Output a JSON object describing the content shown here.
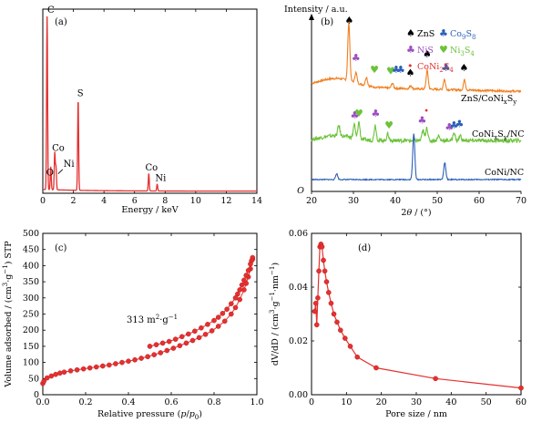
{
  "chart_data": [
    {
      "type": "bar",
      "panel_label": "(a)",
      "xlabel": "Energy / keV",
      "xlim": [
        0,
        14
      ],
      "xticks": [
        0,
        2,
        4,
        6,
        8,
        10,
        12,
        14
      ],
      "peaks": [
        {
          "x": 0.28,
          "h": 1.0
        },
        {
          "x": 0.52,
          "h": 0.13
        },
        {
          "x": 0.78,
          "h": 0.21
        },
        {
          "x": 0.86,
          "h": 0.13
        },
        {
          "x": 2.31,
          "h": 0.52
        },
        {
          "x": 6.93,
          "h": 0.1
        },
        {
          "x": 7.48,
          "h": 0.04
        }
      ],
      "peak_labels": [
        {
          "text": "C",
          "x": 0.3,
          "y": 1.02
        },
        {
          "text": "Co",
          "x": 0.6,
          "y": 0.24
        },
        {
          "text": "O",
          "x": 0.22,
          "y": 0.1
        },
        {
          "text": "Ni",
          "x": 1.35,
          "y": 0.15
        },
        {
          "text": "S",
          "x": 2.25,
          "y": 0.55
        },
        {
          "text": "Co",
          "x": 6.7,
          "y": 0.13
        },
        {
          "text": "Ni",
          "x": 7.35,
          "y": 0.07
        }
      ]
    },
    {
      "type": "line",
      "panel_label": "(b)",
      "ylabel": "Intensity / a.u.",
      "xlabel_main": "2",
      "xlabel_theta": "θ",
      "xlabel_rest": " / (°)",
      "xlim": [
        20,
        70
      ],
      "xticks": [
        20,
        30,
        40,
        50,
        60,
        70
      ],
      "origin_label": "O",
      "legend": {
        "ZnS": "ZnS",
        "Co9S8_main": "Co",
        "Co9S8_sub": "9",
        "Co9S8_s": "S",
        "Co9S8_sub2": "8",
        "NiS": "NiS",
        "Ni3S4_main": "Ni",
        "Ni3S4_sub": "3",
        "Ni3S4_s": "S",
        "Ni3S4_sub2": "4",
        "CoNi2S4_main": "CoNi",
        "CoNi2S4_sub": "2",
        "CoNi2S4_s": "S",
        "CoNi2S4_sub2": "4"
      },
      "series": [
        {
          "name": "ZnS/CoNixSy",
          "label_main": "ZnS/CoNi",
          "label_sub1": "x",
          "label_s": "S",
          "label_sub2": "y",
          "color": "#f07f20",
          "baseline": 0.62,
          "peaks": [
            [
              28.9,
              0.34
            ],
            [
              30.6,
              0.06
            ],
            [
              33.1,
              0.05
            ],
            [
              39.3,
              0.03
            ],
            [
              43.7,
              0.02
            ],
            [
              47.6,
              0.11
            ],
            [
              51.7,
              0.06
            ],
            [
              56.5,
              0.06
            ]
          ]
        },
        {
          "name": "CoNixSy/NC",
          "label_main": "CoNi",
          "label_sub1": "x",
          "label_s": "S",
          "label_sub2": "y",
          "label_rest": "/NC",
          "color": "#6cc23a",
          "baseline": 0.3,
          "peaks": [
            [
              26.5,
              0.06
            ],
            [
              30.2,
              0.08
            ],
            [
              31.3,
              0.1
            ],
            [
              35.2,
              0.09
            ],
            [
              38.2,
              0.04
            ],
            [
              46.6,
              0.06
            ],
            [
              47.5,
              0.08
            ],
            [
              50.3,
              0.03
            ],
            [
              54.0,
              0.05
            ],
            [
              55.5,
              0.03
            ]
          ]
        },
        {
          "name": "CoNi/NC",
          "color": "#2b5fb8",
          "baseline": 0.07,
          "peaks": [
            [
              26.0,
              0.035
            ],
            [
              44.4,
              0.27
            ],
            [
              51.8,
              0.1
            ]
          ]
        }
      ],
      "markers": [
        {
          "sym": "spade",
          "x": 29.0,
          "y": 0.99,
          "color": "#000000"
        },
        {
          "sym": "club",
          "x": 30.6,
          "y": 0.77,
          "color": "#9b4fc0"
        },
        {
          "sym": "heart",
          "x": 35.0,
          "y": 0.7,
          "color": "#6cc23a"
        },
        {
          "sym": "heart",
          "x": 38.9,
          "y": 0.69,
          "color": "#6cc23a"
        },
        {
          "sym": "club",
          "x": 40.2,
          "y": 0.7,
          "color": "#2b5fb8"
        },
        {
          "sym": "club",
          "x": 41.3,
          "y": 0.7,
          "color": "#2b5fb8"
        },
        {
          "sym": "spade",
          "x": 43.6,
          "y": 0.68,
          "color": "#000000"
        },
        {
          "sym": "spade",
          "x": 47.6,
          "y": 0.79,
          "color": "#000000"
        },
        {
          "sym": "club",
          "x": 52.1,
          "y": 0.71,
          "color": "#2b5fb8"
        },
        {
          "sym": "spade",
          "x": 56.4,
          "y": 0.71,
          "color": "#000000"
        },
        {
          "sym": "club",
          "x": 30.3,
          "y": 0.43,
          "color": "#9b4fc0"
        },
        {
          "sym": "heart",
          "x": 31.3,
          "y": 0.44,
          "color": "#6cc23a"
        },
        {
          "sym": "club",
          "x": 35.3,
          "y": 0.44,
          "color": "#9b4fc0"
        },
        {
          "sym": "heart",
          "x": 38.5,
          "y": 0.37,
          "color": "#6cc23a"
        },
        {
          "sym": "club",
          "x": 46.4,
          "y": 0.4,
          "color": "#9b4fc0"
        },
        {
          "sym": "dot",
          "x": 47.4,
          "y": 0.46,
          "color": "#e53030"
        },
        {
          "sym": "club",
          "x": 52.9,
          "y": 0.36,
          "color": "#9b4fc0"
        },
        {
          "sym": "club",
          "x": 54.0,
          "y": 0.37,
          "color": "#2b5fb8"
        },
        {
          "sym": "club",
          "x": 55.3,
          "y": 0.38,
          "color": "#2b5fb8"
        }
      ]
    },
    {
      "type": "scatter",
      "panel_label": "(c)",
      "xlabel_main": "Relative pressure (",
      "xlabel_p": "p",
      "xlabel_slash": "/",
      "xlabel_p0": "p",
      "xlabel_sub0": "0",
      "xlabel_close": ")",
      "ylabel_main": "Volume adsorbed / (cm",
      "ylabel_sup3": "3",
      "ylabel_mid": "·g",
      "ylabel_sup": "−1",
      "ylabel_end": ") STP",
      "annotation_main": "313 m",
      "annotation_sup2": "2",
      "annotation_mid": "·g",
      "annotation_sup": "−1",
      "xlim": [
        0,
        1.0
      ],
      "ylim": [
        0,
        500
      ],
      "xticks": [
        0.0,
        0.2,
        0.4,
        0.6,
        0.8,
        1.0
      ],
      "xtick_labels": [
        "0.0",
        "0.2",
        "0.4",
        "0.6",
        "0.8",
        "1.0"
      ],
      "yticks": [
        0,
        50,
        100,
        150,
        200,
        250,
        300,
        350,
        400,
        450,
        500
      ],
      "color": "#e53030",
      "adsorption": [
        [
          0.0,
          35
        ],
        [
          0.005,
          42
        ],
        [
          0.02,
          52
        ],
        [
          0.04,
          58
        ],
        [
          0.06,
          63
        ],
        [
          0.08,
          67
        ],
        [
          0.1,
          70
        ],
        [
          0.13,
          74
        ],
        [
          0.16,
          77
        ],
        [
          0.19,
          80
        ],
        [
          0.22,
          83
        ],
        [
          0.25,
          86
        ],
        [
          0.28,
          89
        ],
        [
          0.31,
          92
        ],
        [
          0.34,
          96
        ],
        [
          0.37,
          100
        ],
        [
          0.4,
          104
        ],
        [
          0.43,
          108
        ],
        [
          0.46,
          113
        ],
        [
          0.49,
          118
        ],
        [
          0.52,
          124
        ],
        [
          0.55,
          130
        ],
        [
          0.58,
          137
        ],
        [
          0.61,
          144
        ],
        [
          0.64,
          152
        ],
        [
          0.67,
          160
        ],
        [
          0.7,
          168
        ],
        [
          0.73,
          177
        ],
        [
          0.76,
          187
        ],
        [
          0.79,
          198
        ],
        [
          0.82,
          212
        ],
        [
          0.85,
          228
        ],
        [
          0.88,
          250
        ],
        [
          0.9,
          270
        ],
        [
          0.92,
          295
        ],
        [
          0.94,
          325
        ],
        [
          0.95,
          345
        ],
        [
          0.96,
          365
        ],
        [
          0.97,
          390
        ],
        [
          0.98,
          420
        ]
      ],
      "desorption": [
        [
          0.98,
          425
        ],
        [
          0.975,
          415
        ],
        [
          0.97,
          405
        ],
        [
          0.96,
          385
        ],
        [
          0.95,
          370
        ],
        [
          0.94,
          355
        ],
        [
          0.93,
          340
        ],
        [
          0.92,
          325
        ],
        [
          0.91,
          312
        ],
        [
          0.9,
          300
        ],
        [
          0.88,
          282
        ],
        [
          0.86,
          265
        ],
        [
          0.84,
          252
        ],
        [
          0.82,
          240
        ],
        [
          0.8,
          230
        ],
        [
          0.77,
          218
        ],
        [
          0.74,
          207
        ],
        [
          0.71,
          197
        ],
        [
          0.68,
          188
        ],
        [
          0.65,
          180
        ],
        [
          0.62,
          172
        ],
        [
          0.59,
          165
        ],
        [
          0.56,
          160
        ],
        [
          0.53,
          155
        ],
        [
          0.5,
          150
        ]
      ]
    },
    {
      "type": "line",
      "panel_label": "(d)",
      "xlabel": "Pore size / nm",
      "ylabel_main": "dV/dD / (cm",
      "ylabel_sup3": "3",
      "ylabel_mid": "·g",
      "ylabel_sup1": "−1",
      "ylabel_mid2": "·nm",
      "ylabel_sup2": "−1",
      "ylabel_end": ")",
      "xlim": [
        0,
        60
      ],
      "ylim": [
        0,
        0.06
      ],
      "xticks": [
        0,
        10,
        20,
        30,
        40,
        50,
        60
      ],
      "yticks": [
        0.0,
        0.02,
        0.04,
        0.06
      ],
      "ytick_labels": [
        "0.00",
        "0.02",
        "0.04",
        "0.06"
      ],
      "color": "#e53030",
      "points": [
        [
          0.9,
          0.031
        ],
        [
          1.2,
          0.034
        ],
        [
          1.5,
          0.026
        ],
        [
          1.8,
          0.036
        ],
        [
          2.1,
          0.046
        ],
        [
          2.4,
          0.055
        ],
        [
          2.7,
          0.056
        ],
        [
          3.0,
          0.055
        ],
        [
          3.4,
          0.05
        ],
        [
          3.8,
          0.046
        ],
        [
          4.3,
          0.042
        ],
        [
          4.9,
          0.038
        ],
        [
          5.6,
          0.034
        ],
        [
          6.4,
          0.03
        ],
        [
          7.3,
          0.027
        ],
        [
          8.3,
          0.024
        ],
        [
          9.6,
          0.021
        ],
        [
          11.1,
          0.018
        ],
        [
          13.1,
          0.014
        ],
        [
          18.5,
          0.01
        ],
        [
          35.5,
          0.006
        ],
        [
          60.0,
          0.0025
        ]
      ]
    }
  ]
}
